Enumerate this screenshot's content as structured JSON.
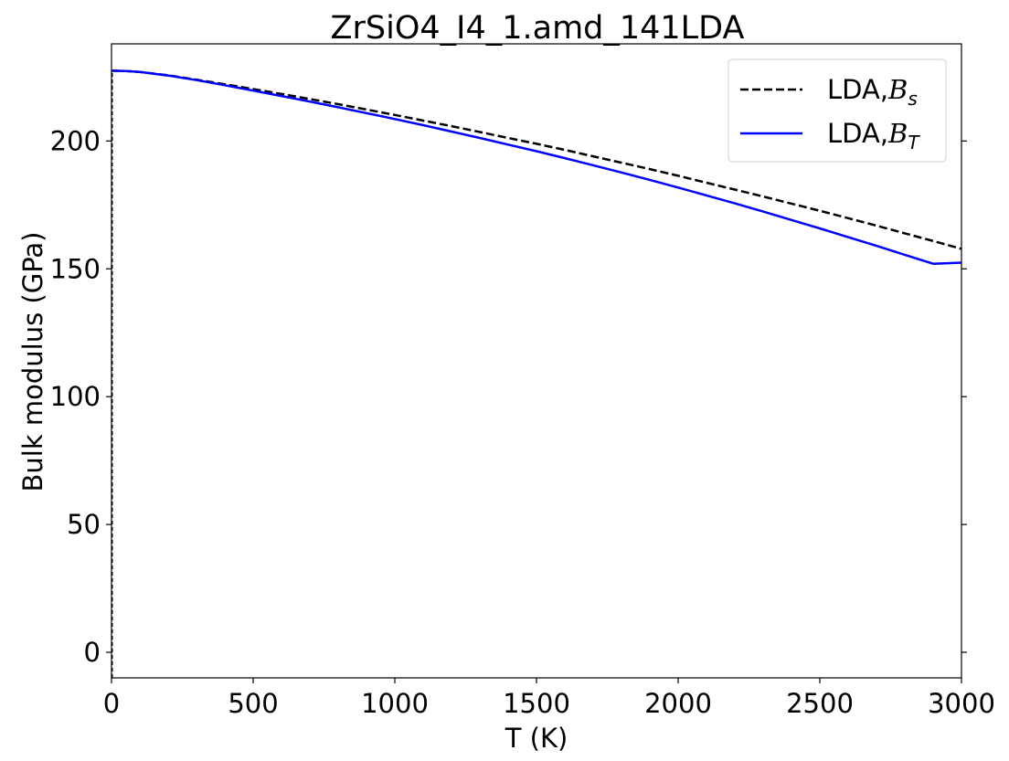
{
  "chart_data": {
    "type": "line",
    "title": "ZrSiO4_I4_1.amd_141LDA",
    "xlabel": "T (K)",
    "ylabel": "Bulk modulus (GPa)",
    "xlim": [
      0,
      3000
    ],
    "ylim": [
      -10,
      238
    ],
    "x_ticks": [
      0,
      500,
      1000,
      1500,
      2000,
      2500,
      3000
    ],
    "y_ticks": [
      0,
      50,
      100,
      150,
      200
    ],
    "grid": false,
    "legend_position": "top-right",
    "x": [
      0,
      50,
      100,
      200,
      300,
      400,
      500,
      600,
      700,
      800,
      900,
      1000,
      1100,
      1200,
      1300,
      1400,
      1500,
      1600,
      1700,
      1800,
      1900,
      2000,
      2100,
      2200,
      2300,
      2400,
      2500,
      2600,
      2700,
      2800,
      2900,
      3000
    ],
    "series": [
      {
        "name": "LDA,Bs",
        "legend_base": "LDA,",
        "legend_symbol": "B",
        "legend_sub": "s",
        "color": "#000000",
        "dash": "dashed",
        "values": [
          227.5,
          227.4,
          227.0,
          225.7,
          224.0,
          222.2,
          220.3,
          218.4,
          216.4,
          214.4,
          212.3,
          210.2,
          208.0,
          205.8,
          203.5,
          201.2,
          198.9,
          196.5,
          194.0,
          191.5,
          189.0,
          186.4,
          183.7,
          181.0,
          178.3,
          175.5,
          172.7,
          169.8,
          166.9,
          163.9,
          160.9,
          157.8
        ]
      },
      {
        "name": "LDA,BT",
        "legend_base": "LDA,",
        "legend_symbol": "B",
        "legend_sub": "T",
        "color": "#0000ff",
        "dash": "solid",
        "values": [
          227.5,
          227.4,
          227.0,
          225.6,
          223.8,
          221.8,
          219.7,
          217.6,
          215.4,
          213.2,
          210.9,
          208.6,
          206.2,
          203.7,
          201.2,
          198.6,
          196.0,
          193.3,
          190.5,
          187.7,
          184.8,
          181.8,
          178.7,
          175.6,
          172.4,
          169.1,
          165.8,
          162.4,
          159.0,
          155.5,
          152.0,
          152.4
        ]
      }
    ]
  }
}
